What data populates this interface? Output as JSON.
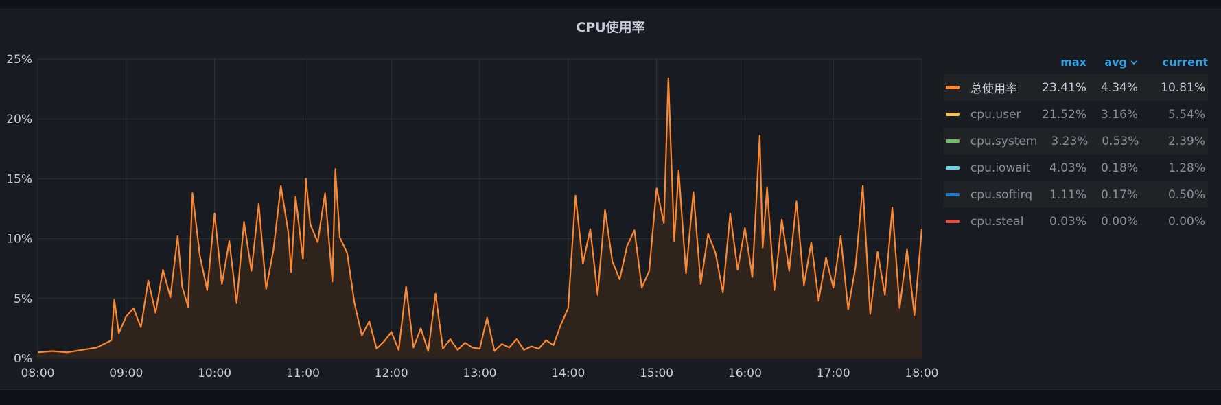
{
  "panel": {
    "title": "CPU使用率"
  },
  "colors": {
    "background": "#181b1f",
    "grid": "#2f3237",
    "axis_text": "#ccccdc",
    "series_line": "#ff8833",
    "series_fill": "#2f231d",
    "legend_header": "#33a2e5"
  },
  "legend": {
    "headers": {
      "max": "max",
      "avg": "avg",
      "current": "current"
    },
    "sort_icon": "chevron-down-icon",
    "rows": [
      {
        "name": "总使用率",
        "color": "#ff8833",
        "max": "23.41%",
        "avg": "4.34%",
        "current": "10.81%"
      },
      {
        "name": "cpu.user",
        "color": "#f2c24b",
        "max": "21.52%",
        "avg": "3.16%",
        "current": "5.54%"
      },
      {
        "name": "cpu.system",
        "color": "#73bf69",
        "max": "3.23%",
        "avg": "0.53%",
        "current": "2.39%"
      },
      {
        "name": "cpu.iowait",
        "color": "#6ed0e0",
        "max": "4.03%",
        "avg": "0.18%",
        "current": "1.28%"
      },
      {
        "name": "cpu.softirq",
        "color": "#1f78c1",
        "max": "1.11%",
        "avg": "0.17%",
        "current": "0.50%"
      },
      {
        "name": "cpu.steal",
        "color": "#e24d42",
        "max": "0.03%",
        "avg": "0.00%",
        "current": "0.00%"
      }
    ]
  },
  "chart_data": {
    "type": "area",
    "title": "CPU使用率",
    "xlabel": "",
    "ylabel": "",
    "x_ticks": [
      "08:00",
      "09:00",
      "10:00",
      "11:00",
      "12:00",
      "13:00",
      "14:00",
      "15:00",
      "16:00",
      "17:00",
      "18:00"
    ],
    "y_ticks": [
      "0%",
      "5%",
      "10%",
      "15%",
      "20%",
      "25%"
    ],
    "xlim": [
      "08:00",
      "18:00"
    ],
    "ylim": [
      0,
      25
    ],
    "grid": true,
    "legend_position": "right",
    "series": [
      {
        "name": "总使用率",
        "x": [
          "08:00",
          "08:10",
          "08:20",
          "08:30",
          "08:40",
          "08:45",
          "08:50",
          "08:52",
          "08:55",
          "09:00",
          "09:05",
          "09:10",
          "09:15",
          "09:20",
          "09:25",
          "09:30",
          "09:35",
          "09:38",
          "09:42",
          "09:45",
          "09:50",
          "09:55",
          "10:00",
          "10:05",
          "10:10",
          "10:15",
          "10:20",
          "10:25",
          "10:30",
          "10:35",
          "10:40",
          "10:45",
          "10:50",
          "10:52",
          "10:55",
          "11:00",
          "11:02",
          "11:05",
          "11:10",
          "11:15",
          "11:20",
          "11:22",
          "11:25",
          "11:30",
          "11:35",
          "11:40",
          "11:45",
          "11:50",
          "11:55",
          "12:00",
          "12:05",
          "12:10",
          "12:15",
          "12:20",
          "12:25",
          "12:30",
          "12:35",
          "12:40",
          "12:45",
          "12:50",
          "12:55",
          "13:00",
          "13:05",
          "13:10",
          "13:15",
          "13:20",
          "13:25",
          "13:30",
          "13:35",
          "13:40",
          "13:45",
          "13:50",
          "13:55",
          "14:00",
          "14:05",
          "14:10",
          "14:15",
          "14:20",
          "14:25",
          "14:30",
          "14:35",
          "14:40",
          "14:45",
          "14:50",
          "14:55",
          "15:00",
          "15:05",
          "15:08",
          "15:12",
          "15:15",
          "15:20",
          "15:25",
          "15:30",
          "15:35",
          "15:40",
          "15:45",
          "15:50",
          "15:55",
          "16:00",
          "16:05",
          "16:10",
          "16:12",
          "16:15",
          "16:20",
          "16:25",
          "16:30",
          "16:35",
          "16:40",
          "16:45",
          "16:50",
          "16:55",
          "17:00",
          "17:05",
          "17:10",
          "17:15",
          "17:20",
          "17:25",
          "17:30",
          "17:35",
          "17:40",
          "17:45",
          "17:50",
          "17:55",
          "18:00"
        ],
        "values": [
          0.5,
          0.6,
          0.5,
          0.7,
          0.9,
          1.2,
          1.5,
          4.9,
          2.1,
          3.5,
          4.2,
          2.6,
          6.5,
          3.8,
          7.4,
          5.1,
          10.2,
          6.0,
          4.3,
          13.8,
          8.6,
          5.7,
          12.1,
          6.2,
          9.8,
          4.6,
          11.4,
          7.3,
          12.9,
          5.8,
          9.1,
          14.4,
          10.6,
          7.2,
          13.5,
          8.3,
          15.0,
          11.2,
          9.7,
          13.8,
          6.4,
          15.8,
          10.1,
          8.8,
          4.6,
          1.9,
          3.1,
          0.8,
          1.4,
          2.2,
          0.7,
          6.0,
          0.9,
          2.5,
          0.6,
          5.4,
          0.8,
          1.6,
          0.7,
          1.3,
          0.9,
          0.8,
          3.4,
          0.6,
          1.2,
          0.9,
          1.6,
          0.7,
          1.0,
          0.8,
          1.5,
          1.1,
          2.8,
          4.2,
          13.6,
          7.9,
          10.8,
          5.3,
          12.4,
          8.1,
          6.6,
          9.4,
          10.7,
          5.9,
          7.3,
          14.2,
          11.3,
          23.4,
          9.8,
          15.7,
          7.1,
          13.9,
          6.2,
          10.4,
          8.8,
          5.5,
          12.1,
          7.4,
          10.9,
          6.8,
          18.6,
          9.2,
          14.3,
          5.7,
          11.6,
          7.3,
          13.1,
          6.1,
          9.7,
          4.8,
          8.4,
          5.9,
          10.2,
          4.1,
          7.6,
          14.4,
          3.7,
          8.9,
          5.3,
          12.6,
          4.2,
          9.1,
          3.6,
          10.8
        ]
      }
    ]
  }
}
